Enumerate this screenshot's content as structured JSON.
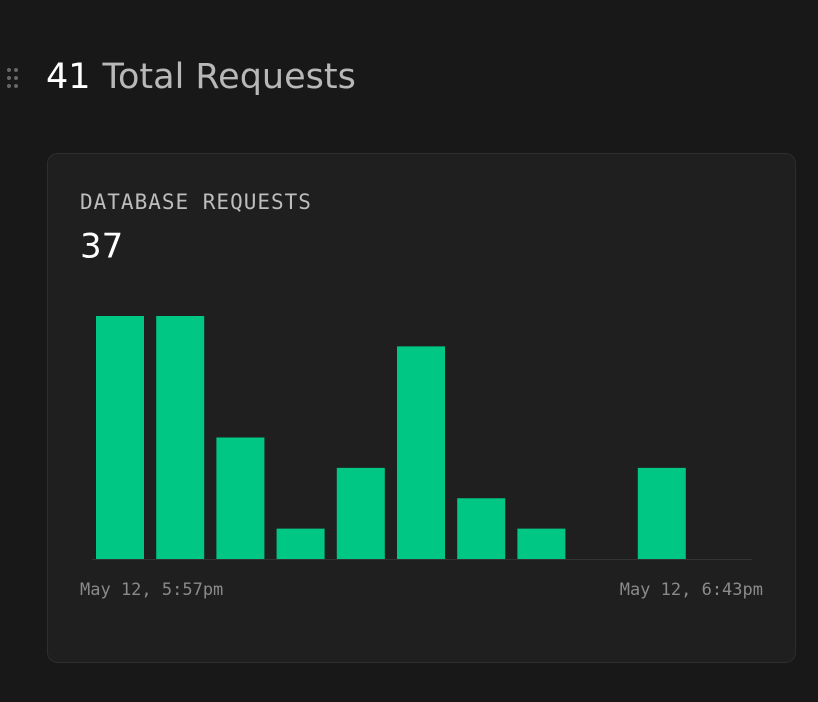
{
  "header": {
    "count": 41,
    "title": "Total Requests"
  },
  "card": {
    "label": "DATABASE REQUESTS",
    "value": 37
  },
  "chart_data": {
    "type": "bar",
    "categories": [
      "May 12, 5:57pm",
      null,
      null,
      null,
      null,
      null,
      null,
      null,
      null,
      null,
      "May 12, 6:43pm"
    ],
    "values": [
      8,
      8,
      4,
      1,
      3,
      7,
      2,
      1,
      0,
      3,
      0
    ],
    "color": "#00c884",
    "ylim": [
      0,
      8
    ]
  }
}
